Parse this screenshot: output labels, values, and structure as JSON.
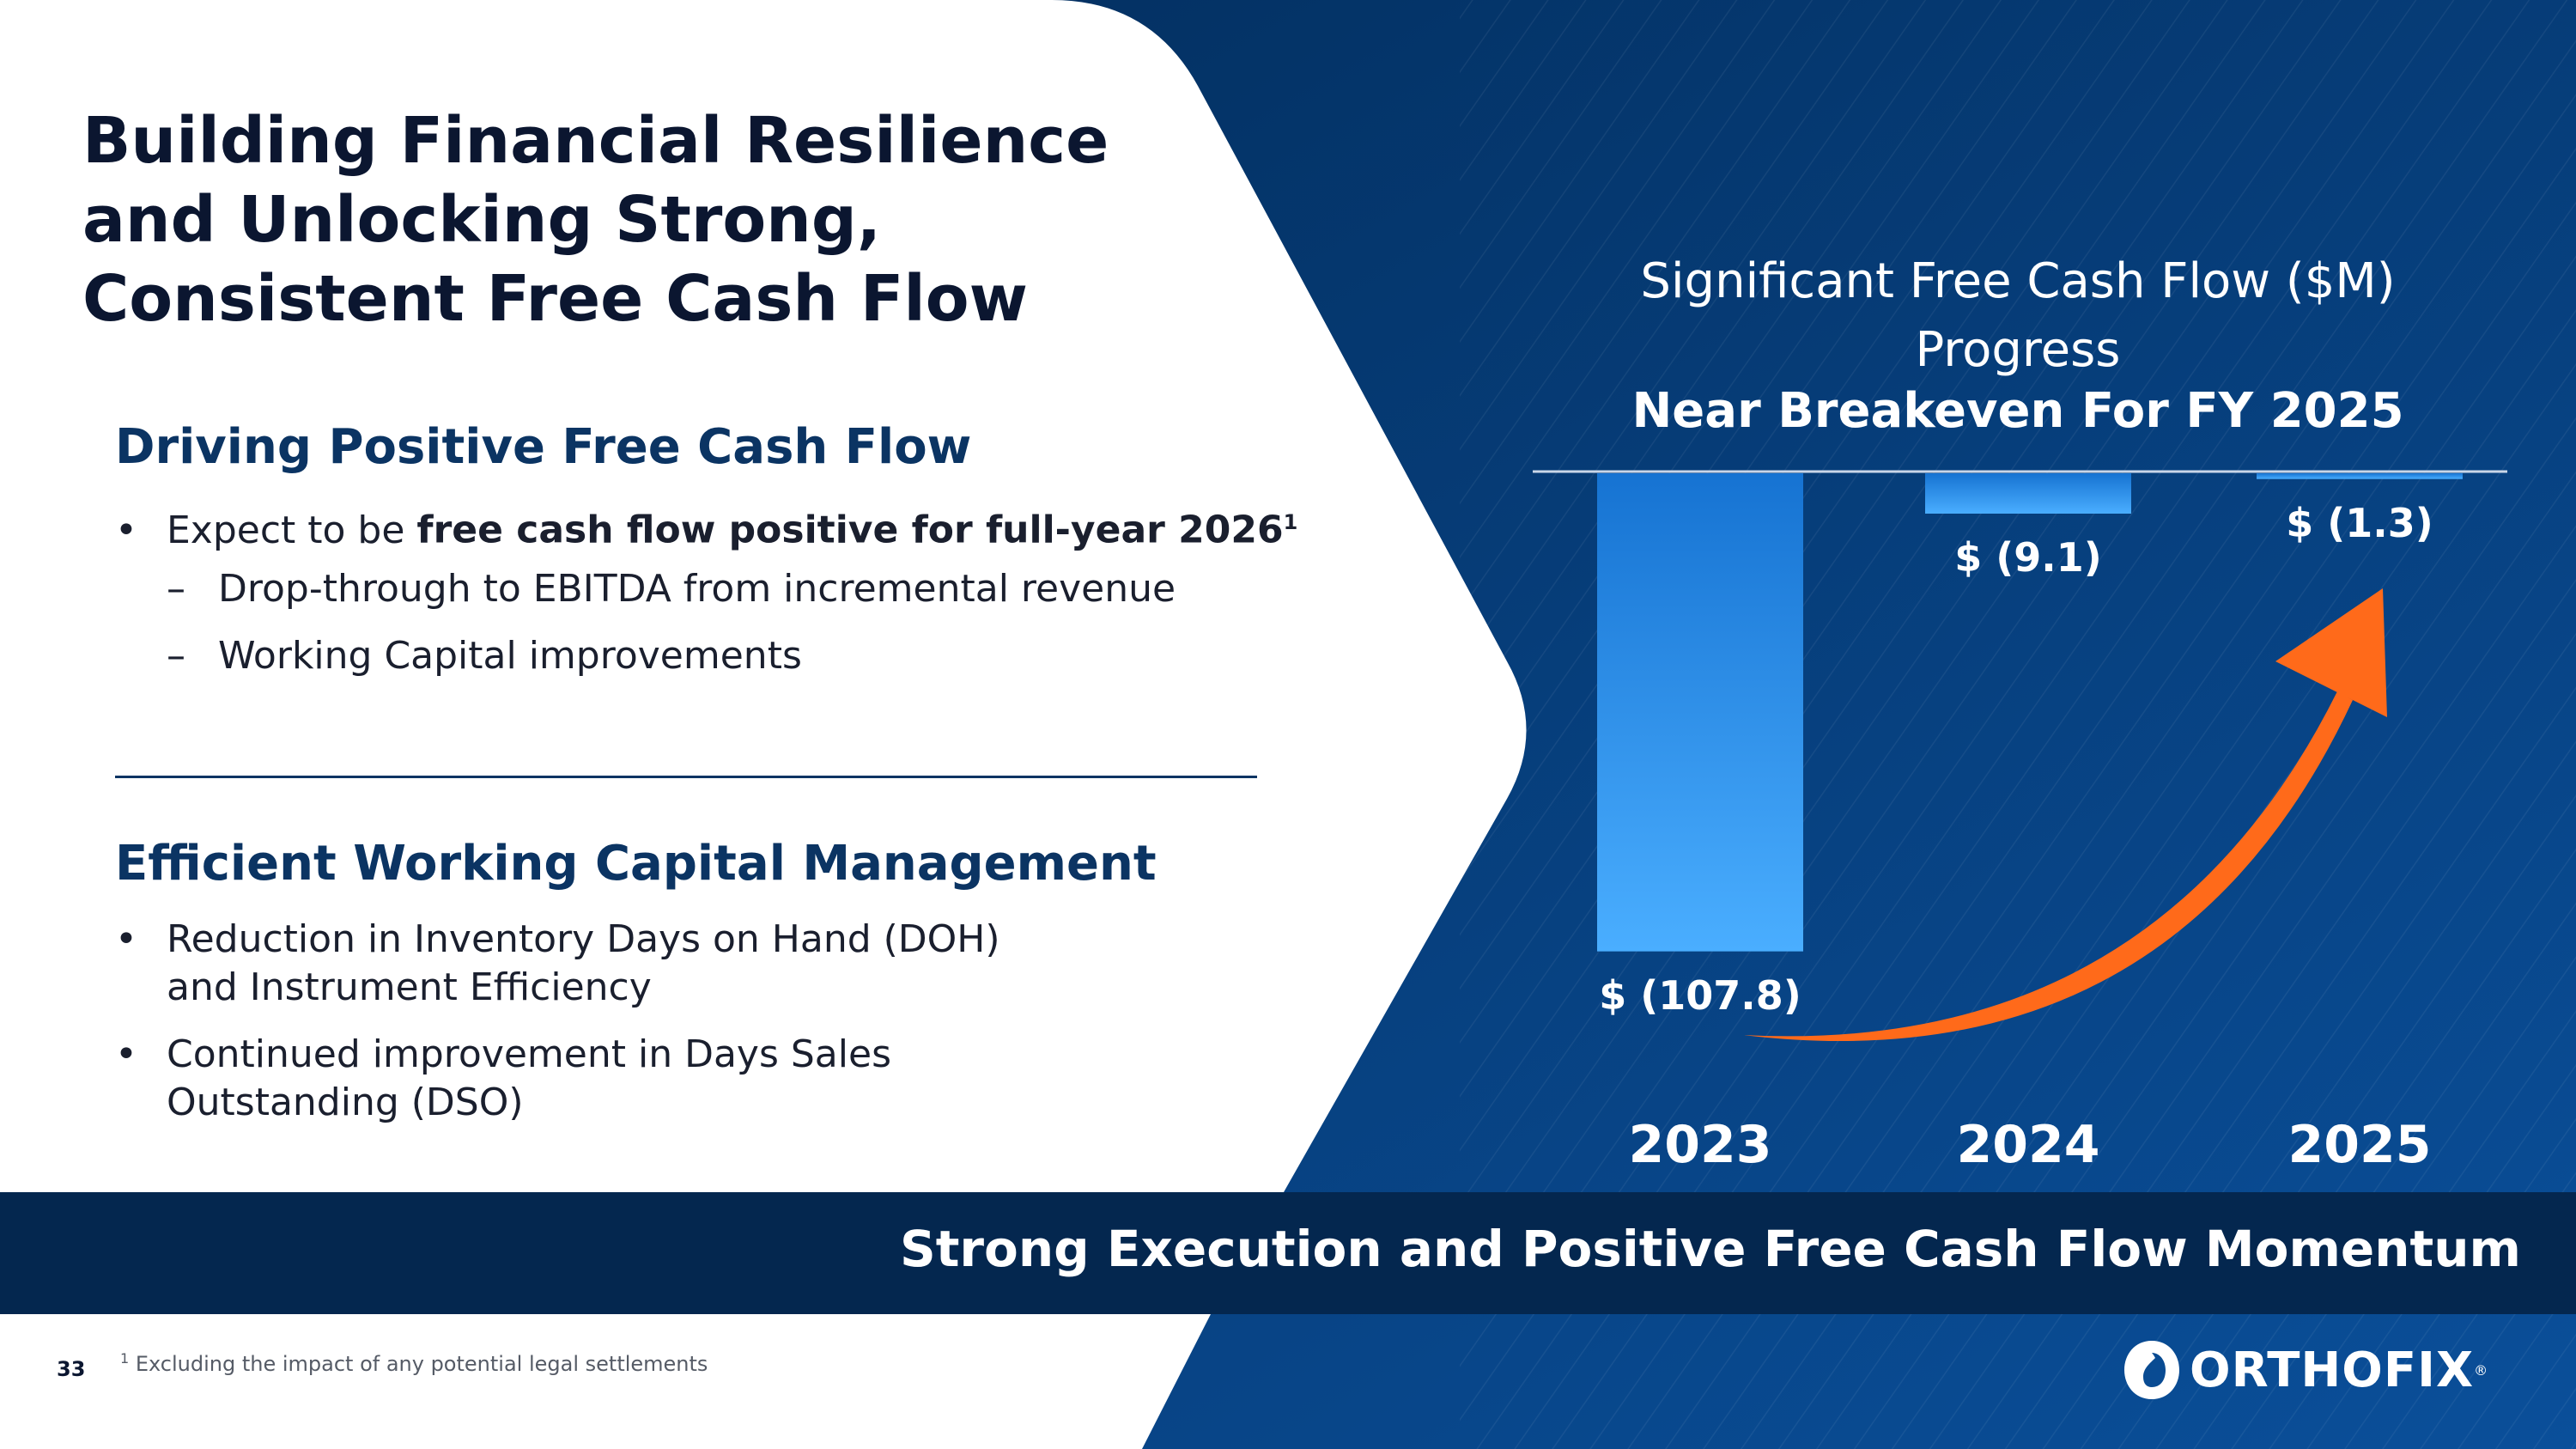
{
  "slide": {
    "title_lines": [
      "Building Financial Resilience",
      "and Unlocking Strong,",
      "Consistent Free Cash Flow"
    ],
    "page_number": "33",
    "footnote": {
      "marker": "1",
      "text": "Excluding the impact of any potential legal settlements"
    },
    "banner": "Strong Execution and Positive Free Cash Flow Momentum",
    "logo": "ORTHOFIX",
    "logo_mark": "®"
  },
  "section1": {
    "heading": "Driving Positive Free Cash Flow",
    "bullet_prefix": "Expect to be ",
    "bullet_bold": "free cash flow positive for full-year 2026",
    "bullet_sup": "1",
    "subitems": [
      "Drop-through to EBITDA from incremental revenue",
      "Working Capital improvements"
    ]
  },
  "section2": {
    "heading": "Efficient Working Capital Management",
    "bullets": [
      {
        "line1": "Reduction in Inventory Days on Hand (DOH)",
        "line2": "and Instrument Efficiency"
      },
      {
        "line1": "Continued improvement in Days Sales",
        "line2": "Outstanding (DSO)"
      }
    ]
  },
  "symbols": {
    "bullet": "•",
    "dash": "–"
  },
  "colors": {
    "navy": "#04274f",
    "bar": "#2f8fe6",
    "arrow": "#ff6a1a",
    "heading": "#0b3463"
  },
  "chart_data": {
    "type": "bar",
    "title_line1": "Significant Free Cash Flow ($M)",
    "title_line2": "Progress",
    "subtitle": "Near Breakeven For FY 2025",
    "categories": [
      "2023",
      "2024",
      "2025"
    ],
    "values": [
      -107.8,
      -9.1,
      -1.3
    ],
    "labels": [
      "$ (107.8)",
      "$ (9.1)",
      "$ (1.3)"
    ],
    "ylim": [
      -110,
      0
    ],
    "xlabel": "",
    "ylabel": ""
  }
}
